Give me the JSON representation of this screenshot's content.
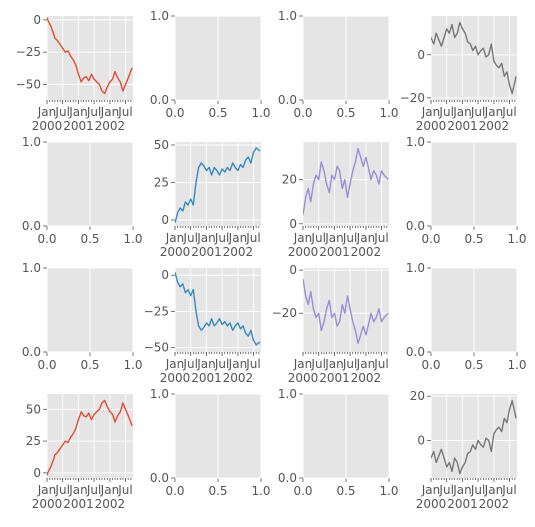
{
  "chart_data": {
    "type": "line",
    "layout": "4x4 grid of subplots",
    "style": "ggplot",
    "x_axis": {
      "kind": "date",
      "range": [
        "2000-01-01",
        "2002-09-26"
      ],
      "major_ticks": [
        {
          "date": "2000-01-01",
          "lines": [
            "Jan",
            "2000"
          ]
        },
        {
          "date": "2000-07-01",
          "lines": [
            "Jul",
            ""
          ]
        },
        {
          "date": "2001-01-01",
          "lines": [
            "Jan",
            "2001"
          ]
        },
        {
          "date": "2001-07-01",
          "lines": [
            "Jul",
            ""
          ]
        },
        {
          "date": "2002-01-01",
          "lines": [
            "Jan",
            "2002"
          ]
        },
        {
          "date": "2002-07-01",
          "lines": [
            "Jul",
            ""
          ]
        }
      ]
    },
    "series_colors": {
      "A": "#e24a33",
      "B": "#348abd",
      "C": "#988ed5",
      "D": "#777777"
    },
    "subplots": [
      {
        "row": 0,
        "col": 0,
        "series": "A",
        "sign": 1,
        "ylim": [
          -62,
          3
        ],
        "yticks": [
          0,
          -25,
          -50
        ],
        "ytick_labels": [
          "0",
          "−25",
          "−50"
        ]
      },
      {
        "row": 0,
        "col": 1,
        "empty": true
      },
      {
        "row": 0,
        "col": 2,
        "empty": true
      },
      {
        "row": 0,
        "col": 3,
        "series": "D",
        "sign": -1,
        "ylim": [
          -21,
          18
        ],
        "yticks": [
          0,
          -20
        ],
        "ytick_labels": [
          "0",
          "−20"
        ]
      },
      {
        "row": 1,
        "col": 0,
        "empty": true
      },
      {
        "row": 1,
        "col": 1,
        "series": "B",
        "sign": 1,
        "ylim": [
          -4,
          52
        ],
        "yticks": [
          0,
          25,
          50
        ],
        "ytick_labels": [
          "0",
          "25",
          "50"
        ]
      },
      {
        "row": 1,
        "col": 2,
        "series": "C",
        "sign": 1,
        "ylim": [
          -1,
          37
        ],
        "yticks": [
          0,
          20
        ],
        "ytick_labels": [
          "0",
          "20"
        ]
      },
      {
        "row": 1,
        "col": 3,
        "empty": true
      },
      {
        "row": 2,
        "col": 0,
        "empty": true
      },
      {
        "row": 2,
        "col": 1,
        "series": "B",
        "sign": -1,
        "ylim": [
          -53,
          5
        ],
        "yticks": [
          0,
          -25,
          -50
        ],
        "ytick_labels": [
          "0",
          "−25",
          "−50"
        ]
      },
      {
        "row": 2,
        "col": 2,
        "series": "C",
        "sign": -1,
        "ylim": [
          -38,
          1
        ],
        "yticks": [
          0,
          -20
        ],
        "ytick_labels": [
          "0",
          "−20"
        ]
      },
      {
        "row": 2,
        "col": 3,
        "empty": true
      },
      {
        "row": 3,
        "col": 0,
        "series": "A",
        "sign": -1,
        "ylim": [
          -4,
          62
        ],
        "yticks": [
          0,
          25,
          50
        ],
        "ytick_labels": [
          "0",
          "25",
          "50"
        ]
      },
      {
        "row": 3,
        "col": 1,
        "empty": true
      },
      {
        "row": 3,
        "col": 2,
        "empty": true
      },
      {
        "row": 3,
        "col": 3,
        "series": "D",
        "sign": 1,
        "ylim": [
          -17,
          21
        ],
        "yticks": [
          0,
          20
        ],
        "ytick_labels": [
          "0",
          "20"
        ]
      }
    ],
    "empty_axes": {
      "xticks": [
        0.0,
        0.5,
        1.0
      ],
      "xtick_labels": [
        "0.0",
        "0.5",
        "1.0"
      ],
      "yticks": [
        0.0,
        1.0
      ],
      "ytick_labels": [
        "0.0",
        "1.0"
      ]
    },
    "series": [
      {
        "key": "A",
        "x": [
          "2000-01-01",
          "2000-01-15",
          "2000-02-01",
          "2000-02-15",
          "2000-03-01",
          "2000-03-15",
          "2000-04-01",
          "2000-05-01",
          "2000-06-01",
          "2000-07-01",
          "2000-08-01",
          "2000-09-01",
          "2000-10-01",
          "2000-11-01",
          "2000-12-01",
          "2001-01-01",
          "2001-02-01",
          "2001-03-01",
          "2001-04-01",
          "2001-05-01",
          "2001-06-01",
          "2001-07-01",
          "2001-08-01",
          "2001-09-01",
          "2001-10-01",
          "2001-11-01",
          "2001-12-01",
          "2002-01-01",
          "2002-02-01",
          "2002-03-01",
          "2002-04-01",
          "2002-05-01",
          "2002-06-01",
          "2002-07-01",
          "2002-08-01",
          "2002-09-15"
        ],
        "y": [
          2,
          -1,
          -3,
          -5,
          -8,
          -10,
          -14,
          -16,
          -19,
          -22,
          -25,
          -24,
          -28,
          -31,
          -35,
          -42,
          -48,
          -45,
          -44,
          -47,
          -42,
          -46,
          -48,
          -50,
          -55,
          -57,
          -52,
          -48,
          -46,
          -40,
          -45,
          -48,
          -55,
          -50,
          -45,
          -37
        ]
      },
      {
        "key": "B",
        "x": [
          "2000-01-01",
          "2000-02-01",
          "2000-03-01",
          "2000-04-01",
          "2000-05-01",
          "2000-06-01",
          "2000-07-01",
          "2000-08-01",
          "2000-09-01",
          "2000-10-01",
          "2000-11-01",
          "2000-12-01",
          "2001-01-01",
          "2001-02-01",
          "2001-03-01",
          "2001-04-01",
          "2001-05-01",
          "2001-06-01",
          "2001-07-01",
          "2001-08-01",
          "2001-09-01",
          "2001-10-01",
          "2001-11-01",
          "2001-12-01",
          "2002-01-01",
          "2002-02-01",
          "2002-03-01",
          "2002-04-01",
          "2002-05-01",
          "2002-06-01",
          "2002-07-01",
          "2002-08-01",
          "2002-09-15"
        ],
        "y": [
          -2,
          5,
          8,
          6,
          12,
          10,
          14,
          10,
          25,
          35,
          38,
          36,
          33,
          35,
          30,
          35,
          33,
          30,
          34,
          32,
          35,
          33,
          38,
          35,
          33,
          37,
          35,
          40,
          42,
          38,
          45,
          48,
          46
        ]
      },
      {
        "key": "C",
        "x": [
          "2000-01-01",
          "2000-02-01",
          "2000-03-01",
          "2000-04-01",
          "2000-05-01",
          "2000-06-01",
          "2000-07-01",
          "2000-08-01",
          "2000-09-01",
          "2000-10-01",
          "2000-11-01",
          "2000-12-01",
          "2001-01-01",
          "2001-02-01",
          "2001-03-01",
          "2001-04-01",
          "2001-05-01",
          "2001-06-01",
          "2001-07-01",
          "2001-08-01",
          "2001-09-01",
          "2001-10-01",
          "2001-11-01",
          "2001-12-01",
          "2002-01-01",
          "2002-02-01",
          "2002-03-01",
          "2002-04-01",
          "2002-05-01",
          "2002-06-01",
          "2002-07-01",
          "2002-08-01",
          "2002-09-15"
        ],
        "y": [
          4,
          12,
          16,
          10,
          18,
          22,
          20,
          28,
          24,
          18,
          14,
          22,
          20,
          26,
          24,
          16,
          20,
          12,
          18,
          24,
          28,
          34,
          30,
          26,
          30,
          25,
          20,
          24,
          22,
          18,
          24,
          22,
          20
        ]
      },
      {
        "key": "D",
        "x": [
          "2000-01-01",
          "2000-02-01",
          "2000-03-01",
          "2000-04-01",
          "2000-05-01",
          "2000-06-01",
          "2000-07-01",
          "2000-08-01",
          "2000-09-01",
          "2000-10-01",
          "2000-11-01",
          "2000-12-01",
          "2001-01-01",
          "2001-02-01",
          "2001-03-01",
          "2001-04-01",
          "2001-05-01",
          "2001-06-01",
          "2001-07-01",
          "2001-08-01",
          "2001-09-01",
          "2001-10-01",
          "2001-11-01",
          "2001-12-01",
          "2002-01-01",
          "2002-02-01",
          "2002-03-01",
          "2002-04-01",
          "2002-05-01",
          "2002-06-01",
          "2002-07-01",
          "2002-08-01",
          "2002-09-15"
        ],
        "y": [
          -8,
          -5,
          -10,
          -7,
          -4,
          -8,
          -12,
          -10,
          -14,
          -8,
          -10,
          -15,
          -12,
          -10,
          -6,
          -5,
          -2,
          -4,
          0,
          -2,
          -3,
          1,
          0,
          -5,
          3,
          5,
          6,
          4,
          10,
          8,
          14,
          18,
          10
        ]
      }
    ]
  }
}
